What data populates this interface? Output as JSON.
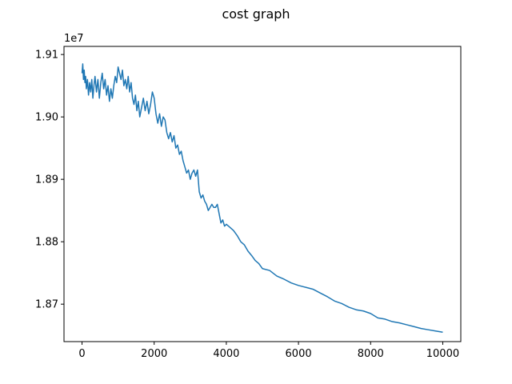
{
  "chart_data": {
    "type": "line",
    "title": "cost graph",
    "xlabel": "",
    "ylabel": "",
    "y_offset_label": "1e7",
    "xlim": [
      -500,
      10500
    ],
    "ylim": [
      18.64,
      19.113
    ],
    "grid": false,
    "x_ticks": [
      0,
      2000,
      4000,
      6000,
      8000,
      10000
    ],
    "x_tick_labels": [
      "0",
      "2000",
      "4000",
      "6000",
      "8000",
      "10000"
    ],
    "y_ticks": [
      18.7,
      18.8,
      18.9,
      19.0,
      19.1
    ],
    "y_tick_labels": [
      "1.87",
      "1.88",
      "1.89",
      "1.90",
      "1.91"
    ],
    "series": [
      {
        "color": "#1f77b4",
        "x": [
          0,
          20,
          40,
          60,
          80,
          100,
          120,
          150,
          180,
          210,
          240,
          270,
          300,
          330,
          360,
          400,
          440,
          480,
          520,
          560,
          600,
          640,
          680,
          720,
          760,
          800,
          840,
          880,
          920,
          960,
          1000,
          1040,
          1080,
          1120,
          1160,
          1200,
          1240,
          1280,
          1320,
          1360,
          1400,
          1440,
          1480,
          1520,
          1560,
          1600,
          1650,
          1700,
          1750,
          1800,
          1850,
          1900,
          1950,
          2000,
          2050,
          2100,
          2150,
          2200,
          2250,
          2300,
          2350,
          2400,
          2450,
          2500,
          2550,
          2600,
          2650,
          2700,
          2750,
          2800,
          2850,
          2900,
          2950,
          3000,
          3050,
          3100,
          3150,
          3200,
          3250,
          3300,
          3350,
          3400,
          3450,
          3500,
          3550,
          3600,
          3650,
          3700,
          3750,
          3800,
          3850,
          3900,
          3950,
          4000,
          4100,
          4200,
          4300,
          4400,
          4500,
          4600,
          4700,
          4800,
          4900,
          5000,
          5200,
          5400,
          5600,
          5800,
          6000,
          6200,
          6400,
          6600,
          6800,
          7000,
          7200,
          7400,
          7600,
          7800,
          8000,
          8200,
          8400,
          8600,
          8800,
          9000,
          9200,
          9400,
          9600,
          9800,
          10000
        ],
        "y": [
          19.07,
          19.085,
          19.06,
          19.075,
          19.055,
          19.065,
          19.045,
          19.06,
          19.035,
          19.055,
          19.04,
          19.06,
          19.03,
          19.05,
          19.065,
          19.04,
          19.06,
          19.03,
          19.055,
          19.07,
          19.045,
          19.06,
          19.035,
          19.05,
          19.025,
          19.045,
          19.03,
          19.05,
          19.065,
          19.055,
          19.08,
          19.07,
          19.06,
          19.075,
          19.05,
          19.06,
          19.045,
          19.065,
          19.04,
          19.055,
          19.03,
          19.02,
          19.035,
          19.01,
          19.025,
          19.0,
          19.015,
          19.03,
          19.01,
          19.025,
          19.005,
          19.02,
          19.04,
          19.03,
          19.005,
          18.99,
          19.005,
          18.985,
          19.0,
          18.995,
          18.975,
          18.965,
          18.975,
          18.96,
          18.97,
          18.95,
          18.955,
          18.94,
          18.945,
          18.93,
          18.92,
          18.91,
          18.915,
          18.9,
          18.91,
          18.915,
          18.905,
          18.915,
          18.88,
          18.87,
          18.875,
          18.865,
          18.86,
          18.85,
          18.855,
          18.86,
          18.855,
          18.855,
          18.86,
          18.845,
          18.83,
          18.835,
          18.825,
          18.828,
          18.823,
          18.818,
          18.81,
          18.8,
          18.795,
          18.785,
          18.778,
          18.77,
          18.765,
          18.757,
          18.754,
          18.745,
          18.74,
          18.734,
          18.73,
          18.727,
          18.724,
          18.718,
          18.712,
          18.705,
          18.701,
          18.695,
          18.691,
          18.689,
          18.685,
          18.678,
          18.676,
          18.672,
          18.67,
          18.667,
          18.664,
          18.661,
          18.659,
          18.657,
          18.655
        ]
      }
    ]
  }
}
